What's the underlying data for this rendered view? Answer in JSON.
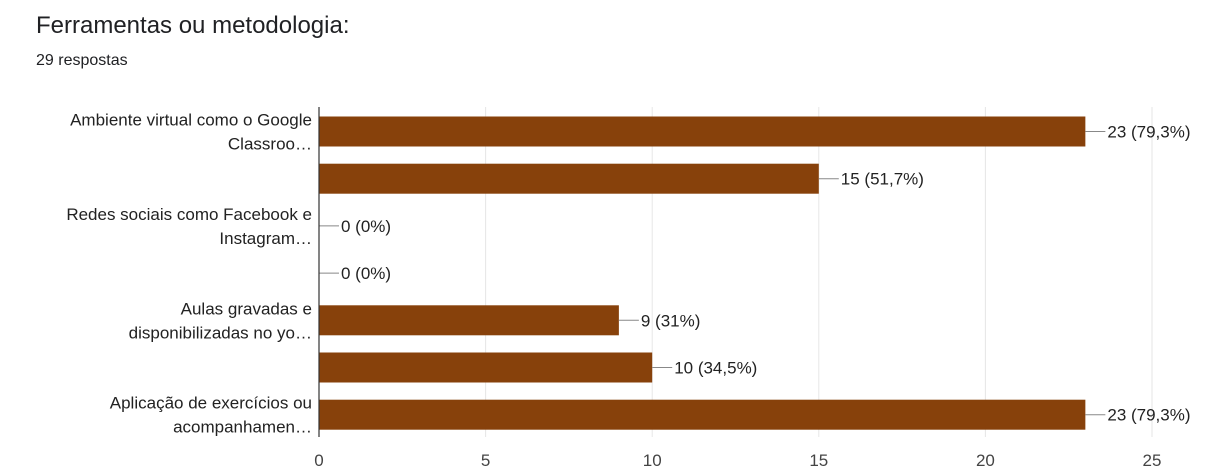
{
  "header": {
    "title": "Ferramentas ou metodologia:",
    "responses": "29 respostas"
  },
  "chart_data": {
    "type": "bar",
    "orientation": "horizontal",
    "categories": [
      [
        "Ambiente virtual como o Google",
        "Classroo…"
      ],
      [],
      [
        "Redes sociais como Facebook e",
        "Instagram…"
      ],
      [],
      [
        "Aulas gravadas e",
        "disponibilizadas no yo…"
      ],
      [],
      [
        "Aplicação de exercícios ou",
        "acompanhamen…"
      ]
    ],
    "values": [
      23,
      15,
      0,
      0,
      9,
      10,
      23
    ],
    "value_labels": [
      "23 (79,3%)",
      "15 (51,7%)",
      "0 (0%)",
      "0 (0%)",
      "9 (31%)",
      "10 (34,5%)",
      "23 (79,3%)"
    ],
    "xticks": [
      0,
      5,
      10,
      15,
      20,
      25
    ],
    "xlim": [
      0,
      25
    ],
    "grid": true,
    "bar_color": "#87410b"
  }
}
